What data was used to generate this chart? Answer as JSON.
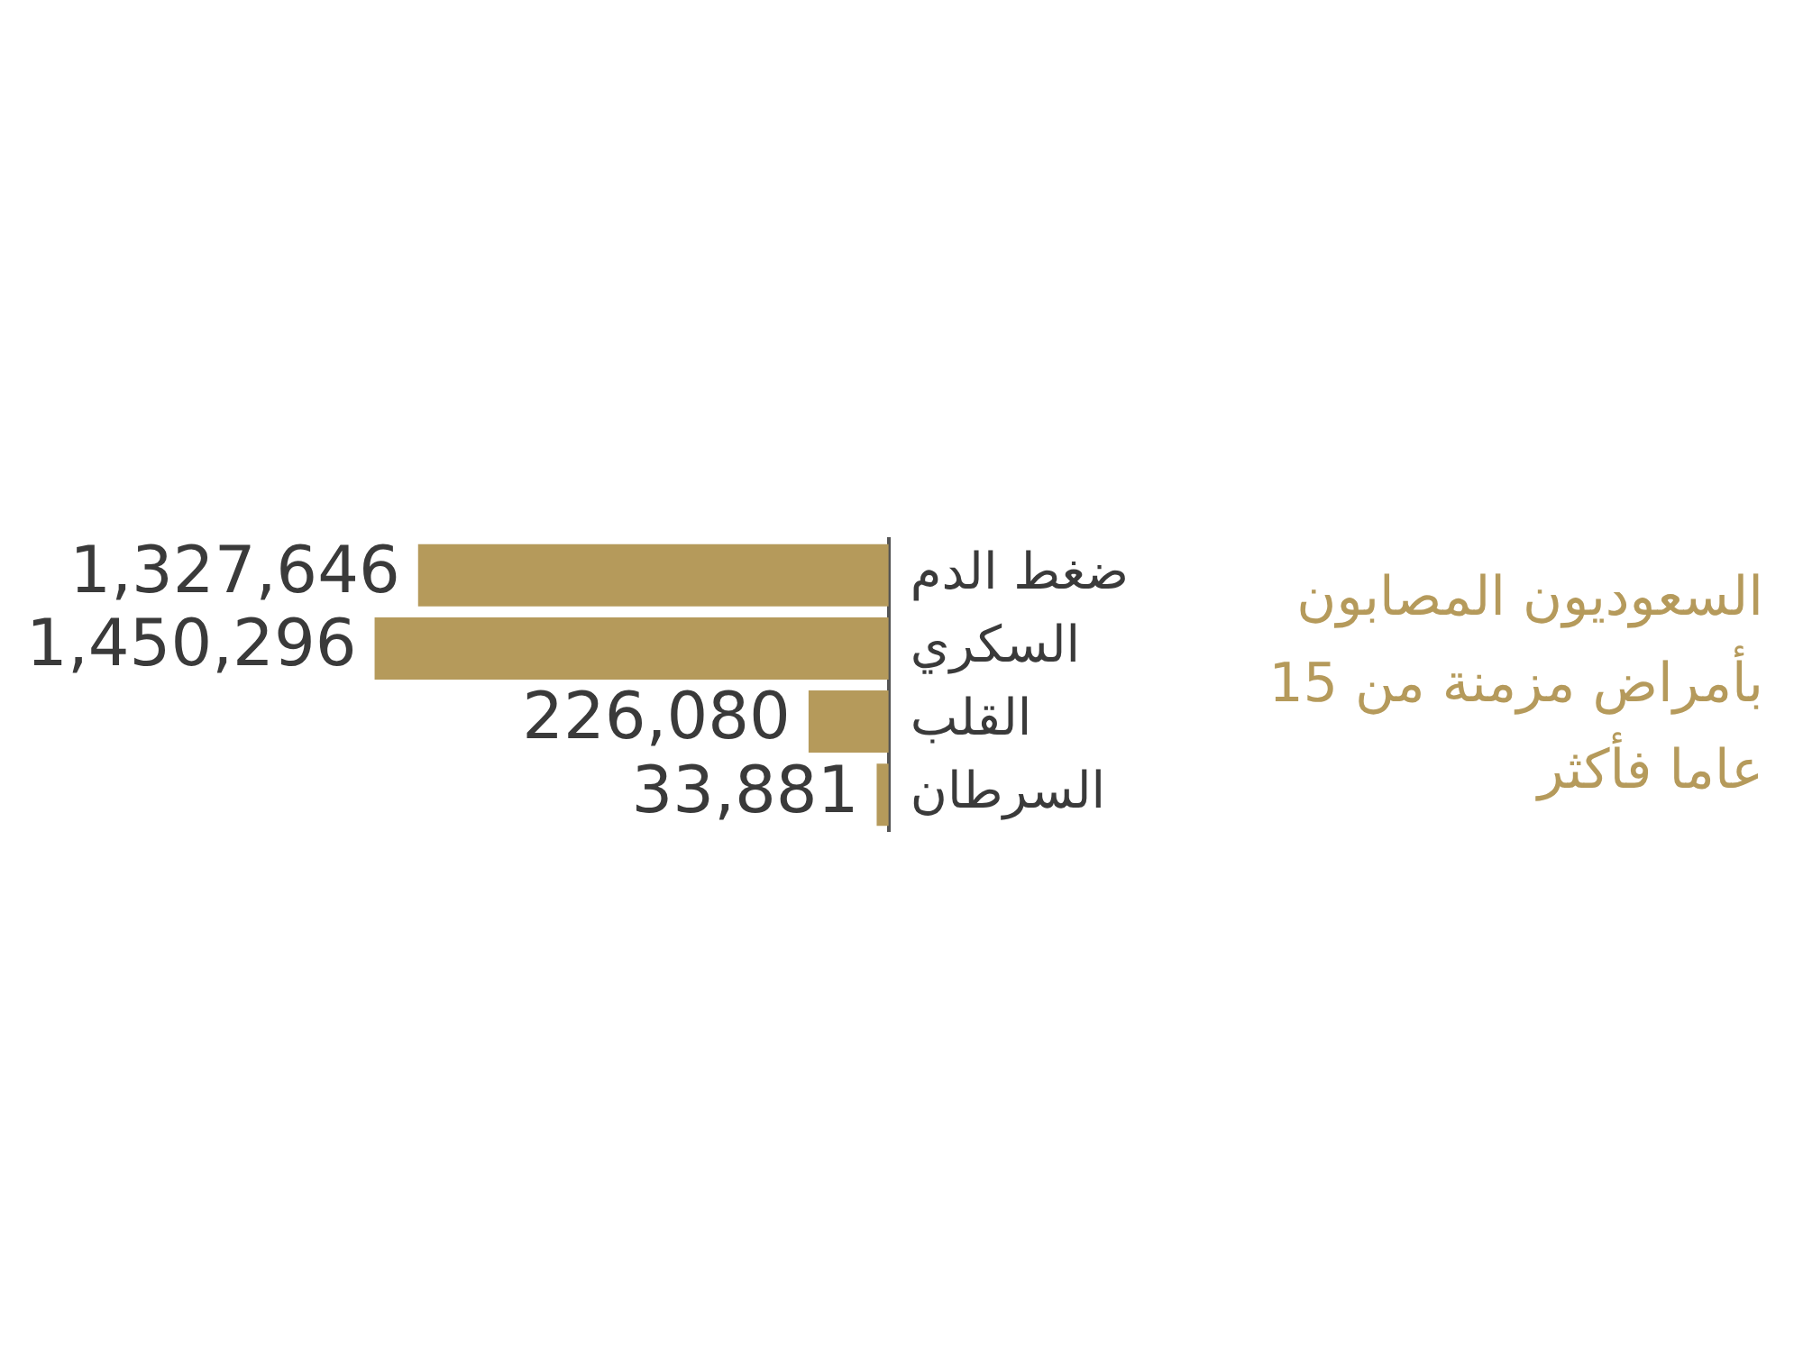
{
  "chart_data": {
    "type": "bar",
    "orientation": "horizontal",
    "title": "السعوديون المصابون بأمراض مزمنة من 15 عاما فأكثر",
    "categories": [
      "ضغط الدم",
      "السكري",
      "القلب",
      "السرطان"
    ],
    "values": [
      1327646,
      1450296,
      226080,
      33881
    ],
    "color": "#b59a5b",
    "value_labels": [
      "1,327,646",
      "1,450,296",
      "226,080",
      "33,881"
    ],
    "tick_labels": "y",
    "grid": false,
    "legend": false
  }
}
